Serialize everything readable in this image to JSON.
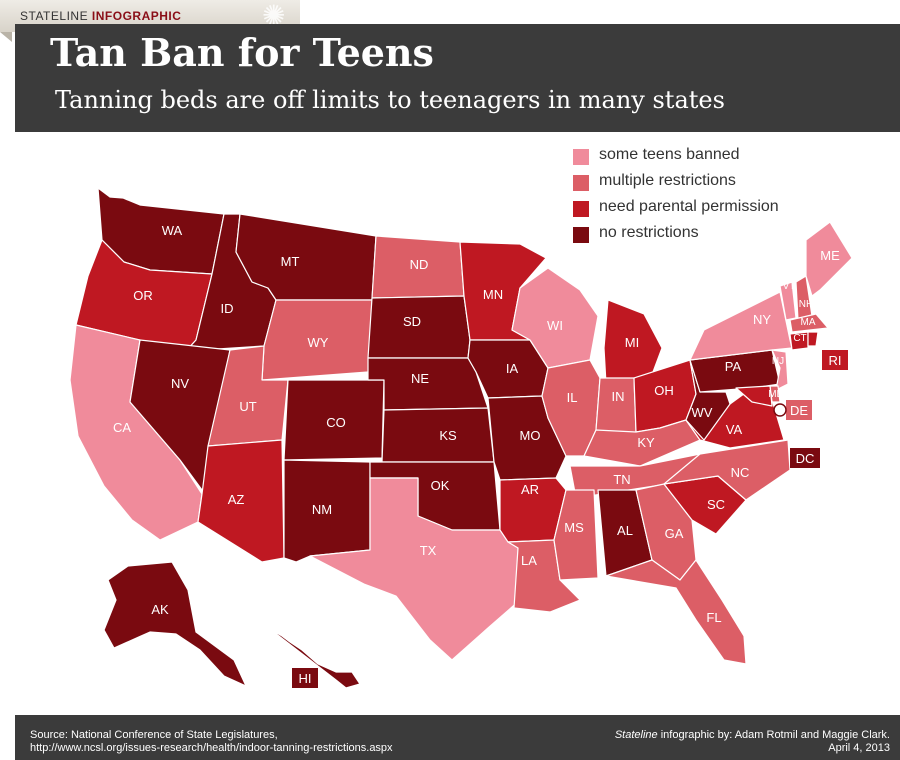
{
  "brand": {
    "prefix": "STATELINE",
    "suffix": "INFOGRAPHIC"
  },
  "title": "Tan Ban for Teens",
  "subtitle": "Tanning beds are off limits to teenagers in many states",
  "colors": {
    "some": "#f08b9b",
    "multiple": "#dc5e66",
    "parental": "#bf1822",
    "none": "#7a0a10"
  },
  "legend": [
    {
      "key": "some",
      "label": "some teens banned"
    },
    {
      "key": "multiple",
      "label": "multiple restrictions"
    },
    {
      "key": "parental",
      "label": "need parental permission"
    },
    {
      "key": "none",
      "label": "no restrictions"
    }
  ],
  "states": [
    {
      "abbr": "WA",
      "cat": "none"
    },
    {
      "abbr": "OR",
      "cat": "parental"
    },
    {
      "abbr": "CA",
      "cat": "some"
    },
    {
      "abbr": "ID",
      "cat": "none"
    },
    {
      "abbr": "NV",
      "cat": "none"
    },
    {
      "abbr": "MT",
      "cat": "none"
    },
    {
      "abbr": "WY",
      "cat": "multiple"
    },
    {
      "abbr": "UT",
      "cat": "multiple"
    },
    {
      "abbr": "AZ",
      "cat": "parental"
    },
    {
      "abbr": "CO",
      "cat": "none"
    },
    {
      "abbr": "NM",
      "cat": "none"
    },
    {
      "abbr": "ND",
      "cat": "multiple"
    },
    {
      "abbr": "SD",
      "cat": "none"
    },
    {
      "abbr": "NE",
      "cat": "none"
    },
    {
      "abbr": "KS",
      "cat": "none"
    },
    {
      "abbr": "OK",
      "cat": "none"
    },
    {
      "abbr": "TX",
      "cat": "some"
    },
    {
      "abbr": "MN",
      "cat": "parental"
    },
    {
      "abbr": "IA",
      "cat": "none"
    },
    {
      "abbr": "MO",
      "cat": "none"
    },
    {
      "abbr": "AR",
      "cat": "parental"
    },
    {
      "abbr": "LA",
      "cat": "multiple"
    },
    {
      "abbr": "WI",
      "cat": "some"
    },
    {
      "abbr": "IL",
      "cat": "multiple"
    },
    {
      "abbr": "MI",
      "cat": "parental"
    },
    {
      "abbr": "IN",
      "cat": "multiple"
    },
    {
      "abbr": "OH",
      "cat": "parental"
    },
    {
      "abbr": "KY",
      "cat": "multiple"
    },
    {
      "abbr": "TN",
      "cat": "multiple"
    },
    {
      "abbr": "MS",
      "cat": "multiple"
    },
    {
      "abbr": "AL",
      "cat": "none"
    },
    {
      "abbr": "GA",
      "cat": "multiple"
    },
    {
      "abbr": "FL",
      "cat": "multiple"
    },
    {
      "abbr": "SC",
      "cat": "parental"
    },
    {
      "abbr": "NC",
      "cat": "multiple"
    },
    {
      "abbr": "VA",
      "cat": "parental"
    },
    {
      "abbr": "WV",
      "cat": "none"
    },
    {
      "abbr": "PA",
      "cat": "none"
    },
    {
      "abbr": "NY",
      "cat": "some"
    },
    {
      "abbr": "VT",
      "cat": "some"
    },
    {
      "abbr": "NH",
      "cat": "multiple"
    },
    {
      "abbr": "ME",
      "cat": "some"
    },
    {
      "abbr": "MA",
      "cat": "multiple"
    },
    {
      "abbr": "CT",
      "cat": "parental"
    },
    {
      "abbr": "RI",
      "cat": "parental"
    },
    {
      "abbr": "NJ",
      "cat": "some"
    },
    {
      "abbr": "DE",
      "cat": "multiple"
    },
    {
      "abbr": "MD",
      "cat": "parental"
    },
    {
      "abbr": "DC",
      "cat": "none"
    },
    {
      "abbr": "AK",
      "cat": "none"
    },
    {
      "abbr": "HI",
      "cat": "none"
    }
  ],
  "footer": {
    "source_line1": "Source: National Conference of State Legislatures,",
    "source_line2": "http://www.ncsl.org/issues-research/health/indoor-tanning-restrictions.aspx",
    "credit_italic": "Stateline",
    "credit_rest": " infographic by: Adam Rotmil and Maggie Clark.",
    "date": "April 4, 2013"
  }
}
